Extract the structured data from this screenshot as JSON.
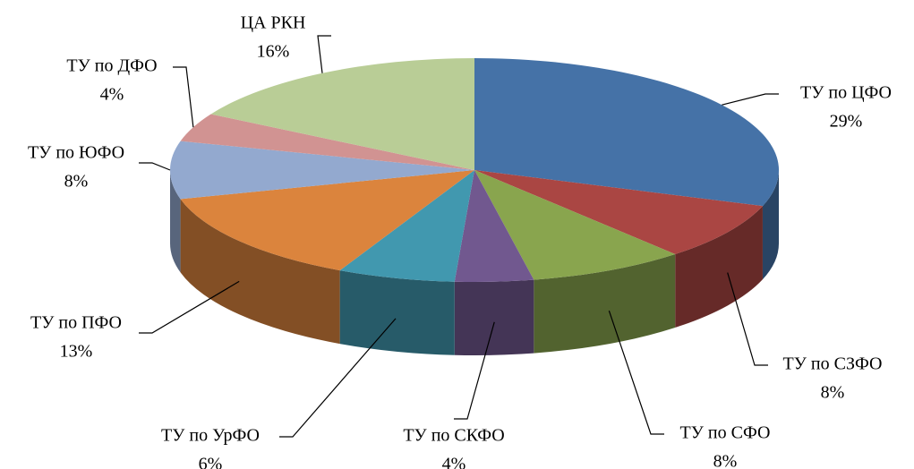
{
  "chart_data": {
    "type": "pie3d",
    "categories": [
      "ТУ по ЦФО",
      "ТУ по СЗФО",
      "ТУ по СФО",
      "ТУ по СКФО",
      "ТУ по УрФО",
      "ТУ по ПФО",
      "ТУ по ЮФО",
      "ТУ по ДФО",
      "ЦА РКН"
    ],
    "values": [
      29,
      8,
      8,
      4,
      6,
      13,
      8,
      4,
      16
    ],
    "value_labels": [
      "29%",
      "8%",
      "8%",
      "4%",
      "6%",
      "13%",
      "8%",
      "4%",
      "16%"
    ],
    "colors": [
      "#4572a7",
      "#aa4643",
      "#89a54e",
      "#71588f",
      "#4198af",
      "#db843d",
      "#93a9cf",
      "#d19392",
      "#b9cd96"
    ]
  }
}
